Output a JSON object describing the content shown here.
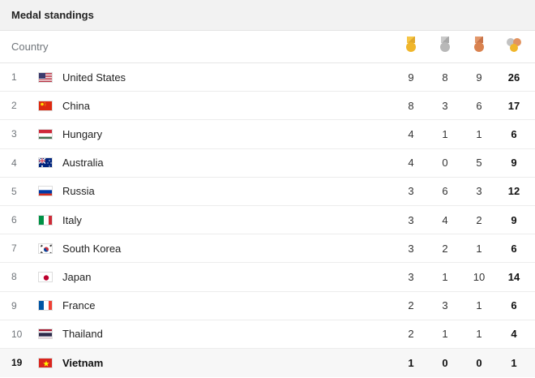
{
  "widget": {
    "title": "Medal standings",
    "country_header": "Country",
    "medal_icons": [
      "gold-medal-icon",
      "silver-medal-icon",
      "bronze-medal-icon",
      "total-medals-icon"
    ]
  },
  "rows": [
    {
      "rank": "1",
      "country": "United States",
      "flag": "flag-us",
      "gold": "9",
      "silver": "8",
      "bronze": "9",
      "total": "26"
    },
    {
      "rank": "2",
      "country": "China",
      "flag": "flag-cn",
      "gold": "8",
      "silver": "3",
      "bronze": "6",
      "total": "17"
    },
    {
      "rank": "3",
      "country": "Hungary",
      "flag": "flag-hu",
      "gold": "4",
      "silver": "1",
      "bronze": "1",
      "total": "6"
    },
    {
      "rank": "4",
      "country": "Australia",
      "flag": "flag-au",
      "gold": "4",
      "silver": "0",
      "bronze": "5",
      "total": "9"
    },
    {
      "rank": "5",
      "country": "Russia",
      "flag": "flag-ru",
      "gold": "3",
      "silver": "6",
      "bronze": "3",
      "total": "12"
    },
    {
      "rank": "6",
      "country": "Italy",
      "flag": "flag-it",
      "gold": "3",
      "silver": "4",
      "bronze": "2",
      "total": "9"
    },
    {
      "rank": "7",
      "country": "South Korea",
      "flag": "flag-kr",
      "gold": "3",
      "silver": "2",
      "bronze": "1",
      "total": "6"
    },
    {
      "rank": "8",
      "country": "Japan",
      "flag": "flag-jp",
      "gold": "3",
      "silver": "1",
      "bronze": "10",
      "total": "14"
    },
    {
      "rank": "9",
      "country": "France",
      "flag": "flag-fr",
      "gold": "2",
      "silver": "3",
      "bronze": "1",
      "total": "6"
    },
    {
      "rank": "10",
      "country": "Thailand",
      "flag": "flag-th",
      "gold": "2",
      "silver": "1",
      "bronze": "1",
      "total": "4"
    },
    {
      "rank": "19",
      "country": "Vietnam",
      "flag": "flag-vn",
      "gold": "1",
      "silver": "0",
      "bronze": "0",
      "total": "1",
      "highlighted": true
    }
  ],
  "colors": {
    "gold": "#f0b62b",
    "silver": "#b8b8b8",
    "bronze": "#d9824f",
    "highlight_bg": "#f7f7f7"
  }
}
